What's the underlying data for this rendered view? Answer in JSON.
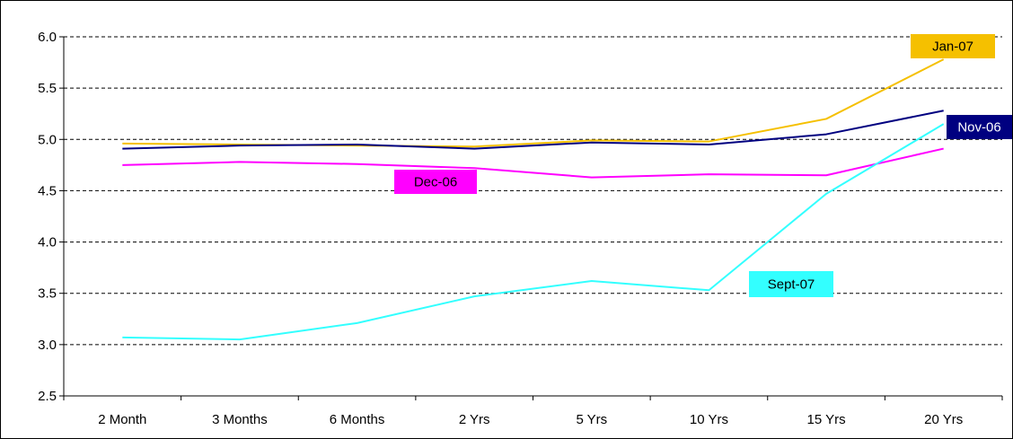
{
  "chart_data": {
    "type": "line",
    "title": "",
    "xlabel": "",
    "ylabel": "",
    "categories": [
      "2 Month",
      "3 Months",
      "6 Months",
      "2 Yrs",
      "5 Yrs",
      "10 Yrs",
      "15 Yrs",
      "20 Yrs"
    ],
    "y_ticks": [
      "2.5",
      "3.0",
      "3.5",
      "4.0",
      "4.5",
      "5.0",
      "5.5",
      "6.0"
    ],
    "ylim": [
      2.5,
      6.0
    ],
    "grid": "horizontal-dashed",
    "legend": "none",
    "series": [
      {
        "name": "Jan-07",
        "color": "#f5c000",
        "label_text_color": "#000000",
        "values": [
          4.96,
          4.95,
          4.94,
          4.93,
          4.99,
          4.98,
          5.2,
          5.78
        ]
      },
      {
        "name": "Nov-06",
        "color": "#000080",
        "label_text_color": "#ffffff",
        "values": [
          4.91,
          4.94,
          4.95,
          4.91,
          4.97,
          4.95,
          5.05,
          5.28
        ]
      },
      {
        "name": "Dec-06",
        "color": "#ff00ff",
        "label_text_color": "#000000",
        "values": [
          4.75,
          4.78,
          4.76,
          4.72,
          4.63,
          4.66,
          4.65,
          4.91
        ]
      },
      {
        "name": "Sept-07",
        "color": "#33ffff",
        "label_text_color": "#000000",
        "values": [
          3.07,
          3.05,
          3.21,
          3.47,
          3.62,
          3.53,
          4.47,
          5.15
        ]
      }
    ]
  }
}
